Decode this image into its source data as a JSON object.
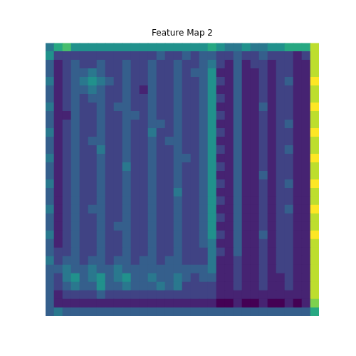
{
  "chart_data": {
    "type": "heatmap",
    "title": "Feature Map 2",
    "tick_labels": false,
    "zlim": [
      0,
      1
    ],
    "cells": [
      [
        0.4,
        0.6,
        0.7,
        0.5,
        0.5,
        0.5,
        0.5,
        0.5,
        0.5,
        0.5,
        0.5,
        0.5,
        0.5,
        0.5,
        0.5,
        0.5,
        0.5,
        0.5,
        0.5,
        0.6,
        0.5,
        0.4,
        0.4,
        0.5,
        0.4,
        0.4,
        0.5,
        0.5,
        0.6,
        0.6,
        0.6,
        0.9
      ],
      [
        0.5,
        0.2,
        0.2,
        0.2,
        0.2,
        0.2,
        0.2,
        0.2,
        0.2,
        0.2,
        0.2,
        0.2,
        0.2,
        0.3,
        0.2,
        0.2,
        0.3,
        0.2,
        0.3,
        0.3,
        0.2,
        0.2,
        0.3,
        0.2,
        0.2,
        0.3,
        0.2,
        0.2,
        0.2,
        0.1,
        0.2,
        0.9
      ],
      [
        0.3,
        0.1,
        0.2,
        0.3,
        0.2,
        0.2,
        0.3,
        0.2,
        0.2,
        0.3,
        0.2,
        0.2,
        0.3,
        0.2,
        0.2,
        0.3,
        0.2,
        0.2,
        0.3,
        0.4,
        0.2,
        0.1,
        0.3,
        0.1,
        0.2,
        0.2,
        0.1,
        0.2,
        0.2,
        0.1,
        0.1,
        0.9
      ],
      [
        0.3,
        0.1,
        0.2,
        0.3,
        0.3,
        0.4,
        0.3,
        0.2,
        0.2,
        0.3,
        0.2,
        0.2,
        0.3,
        0.2,
        0.2,
        0.3,
        0.2,
        0.3,
        0.3,
        0.5,
        0.1,
        0.1,
        0.3,
        0.1,
        0.1,
        0.2,
        0.1,
        0.2,
        0.2,
        0.1,
        0.1,
        0.9
      ],
      [
        0.4,
        0.1,
        0.2,
        0.3,
        0.4,
        0.5,
        0.4,
        0.3,
        0.2,
        0.3,
        0.2,
        0.2,
        0.3,
        0.2,
        0.2,
        0.3,
        0.2,
        0.2,
        0.3,
        0.5,
        0.2,
        0.1,
        0.3,
        0.1,
        0.1,
        0.2,
        0.1,
        0.2,
        0.3,
        0.1,
        0.1,
        1.0
      ],
      [
        0.3,
        0.1,
        0.2,
        0.3,
        0.3,
        0.4,
        0.3,
        0.2,
        0.2,
        0.3,
        0.2,
        0.1,
        0.3,
        0.2,
        0.2,
        0.3,
        0.2,
        0.2,
        0.3,
        0.5,
        0.1,
        0.1,
        0.3,
        0.1,
        0.1,
        0.2,
        0.1,
        0.2,
        0.2,
        0.1,
        0.1,
        0.9
      ],
      [
        0.3,
        0.1,
        0.2,
        0.3,
        0.2,
        0.3,
        0.3,
        0.2,
        0.2,
        0.3,
        0.2,
        0.2,
        0.3,
        0.2,
        0.2,
        0.3,
        0.2,
        0.2,
        0.3,
        0.5,
        0.2,
        0.1,
        0.3,
        0.1,
        0.1,
        0.2,
        0.1,
        0.2,
        0.2,
        0.1,
        0.1,
        0.9
      ],
      [
        0.4,
        0.1,
        0.2,
        0.3,
        0.2,
        0.2,
        0.3,
        0.2,
        0.3,
        0.3,
        0.2,
        0.2,
        0.3,
        0.2,
        0.2,
        0.3,
        0.2,
        0.2,
        0.3,
        0.5,
        0.1,
        0.1,
        0.3,
        0.1,
        0.1,
        0.3,
        0.1,
        0.2,
        0.2,
        0.1,
        0.1,
        1.0
      ],
      [
        0.3,
        0.1,
        0.1,
        0.3,
        0.2,
        0.2,
        0.3,
        0.2,
        0.2,
        0.3,
        0.3,
        0.2,
        0.3,
        0.2,
        0.2,
        0.3,
        0.2,
        0.2,
        0.3,
        0.5,
        0.2,
        0.1,
        0.3,
        0.1,
        0.1,
        0.2,
        0.1,
        0.2,
        0.2,
        0.1,
        0.1,
        0.9
      ],
      [
        0.3,
        0.1,
        0.2,
        0.3,
        0.2,
        0.2,
        0.3,
        0.2,
        0.2,
        0.3,
        0.2,
        0.2,
        0.3,
        0.3,
        0.2,
        0.3,
        0.2,
        0.2,
        0.3,
        0.5,
        0.1,
        0.1,
        0.3,
        0.1,
        0.1,
        0.2,
        0.1,
        0.2,
        0.3,
        0.1,
        0.1,
        0.9
      ],
      [
        0.4,
        0.1,
        0.2,
        0.3,
        0.2,
        0.2,
        0.3,
        0.2,
        0.2,
        0.3,
        0.2,
        0.2,
        0.4,
        0.2,
        0.2,
        0.3,
        0.2,
        0.2,
        0.3,
        0.5,
        0.2,
        0.1,
        0.3,
        0.1,
        0.1,
        0.2,
        0.1,
        0.2,
        0.2,
        0.1,
        0.1,
        1.0
      ],
      [
        0.3,
        0.1,
        0.2,
        0.3,
        0.2,
        0.3,
        0.3,
        0.2,
        0.2,
        0.3,
        0.2,
        0.2,
        0.3,
        0.2,
        0.3,
        0.3,
        0.2,
        0.2,
        0.3,
        0.5,
        0.1,
        0.1,
        0.3,
        0.1,
        0.1,
        0.2,
        0.1,
        0.2,
        0.2,
        0.1,
        0.1,
        0.9
      ],
      [
        0.3,
        0.1,
        0.2,
        0.3,
        0.2,
        0.2,
        0.4,
        0.2,
        0.2,
        0.3,
        0.2,
        0.2,
        0.3,
        0.2,
        0.2,
        0.3,
        0.2,
        0.2,
        0.3,
        0.5,
        0.2,
        0.1,
        0.3,
        0.1,
        0.1,
        0.2,
        0.1,
        0.2,
        0.3,
        0.1,
        0.1,
        0.9
      ],
      [
        0.4,
        0.1,
        0.2,
        0.3,
        0.2,
        0.2,
        0.3,
        0.2,
        0.2,
        0.3,
        0.2,
        0.2,
        0.3,
        0.2,
        0.2,
        0.3,
        0.3,
        0.2,
        0.3,
        0.5,
        0.1,
        0.1,
        0.3,
        0.1,
        0.1,
        0.2,
        0.1,
        0.2,
        0.2,
        0.1,
        0.1,
        1.0
      ],
      [
        0.3,
        0.1,
        0.2,
        0.3,
        0.2,
        0.2,
        0.3,
        0.2,
        0.2,
        0.4,
        0.2,
        0.2,
        0.3,
        0.2,
        0.2,
        0.3,
        0.2,
        0.2,
        0.3,
        0.5,
        0.2,
        0.1,
        0.3,
        0.1,
        0.1,
        0.2,
        0.1,
        0.2,
        0.2,
        0.1,
        0.1,
        0.9
      ],
      [
        0.3,
        0.1,
        0.2,
        0.3,
        0.2,
        0.2,
        0.3,
        0.2,
        0.2,
        0.3,
        0.2,
        0.2,
        0.3,
        0.2,
        0.2,
        0.3,
        0.2,
        0.2,
        0.3,
        0.5,
        0.1,
        0.1,
        0.3,
        0.1,
        0.1,
        0.3,
        0.1,
        0.2,
        0.2,
        0.1,
        0.1,
        0.9
      ],
      [
        0.4,
        0.1,
        0.2,
        0.3,
        0.2,
        0.2,
        0.3,
        0.2,
        0.2,
        0.3,
        0.2,
        0.2,
        0.3,
        0.2,
        0.2,
        0.3,
        0.2,
        0.2,
        0.3,
        0.5,
        0.2,
        0.1,
        0.3,
        0.1,
        0.1,
        0.2,
        0.1,
        0.2,
        0.3,
        0.1,
        0.1,
        1.0
      ],
      [
        0.3,
        0.1,
        0.2,
        0.3,
        0.2,
        0.2,
        0.3,
        0.2,
        0.2,
        0.3,
        0.2,
        0.2,
        0.3,
        0.2,
        0.2,
        0.4,
        0.2,
        0.2,
        0.3,
        0.5,
        0.1,
        0.1,
        0.3,
        0.1,
        0.1,
        0.2,
        0.1,
        0.2,
        0.2,
        0.1,
        0.1,
        0.9
      ],
      [
        0.3,
        0.1,
        0.2,
        0.3,
        0.2,
        0.2,
        0.3,
        0.2,
        0.2,
        0.3,
        0.2,
        0.2,
        0.3,
        0.2,
        0.2,
        0.3,
        0.2,
        0.2,
        0.3,
        0.5,
        0.2,
        0.1,
        0.3,
        0.1,
        0.1,
        0.2,
        0.1,
        0.2,
        0.2,
        0.1,
        0.1,
        0.9
      ],
      [
        0.4,
        0.1,
        0.2,
        0.3,
        0.2,
        0.3,
        0.3,
        0.2,
        0.2,
        0.3,
        0.2,
        0.2,
        0.3,
        0.2,
        0.2,
        0.3,
        0.2,
        0.2,
        0.3,
        0.5,
        0.1,
        0.1,
        0.3,
        0.1,
        0.1,
        0.2,
        0.1,
        0.2,
        0.3,
        0.1,
        0.1,
        1.0
      ],
      [
        0.3,
        0.1,
        0.2,
        0.3,
        0.2,
        0.2,
        0.3,
        0.2,
        0.2,
        0.3,
        0.2,
        0.2,
        0.3,
        0.2,
        0.2,
        0.3,
        0.2,
        0.2,
        0.3,
        0.5,
        0.2,
        0.1,
        0.3,
        0.1,
        0.1,
        0.2,
        0.1,
        0.2,
        0.2,
        0.1,
        0.1,
        0.9
      ],
      [
        0.3,
        0.1,
        0.2,
        0.3,
        0.2,
        0.2,
        0.3,
        0.2,
        0.3,
        0.3,
        0.2,
        0.2,
        0.3,
        0.2,
        0.2,
        0.3,
        0.2,
        0.2,
        0.3,
        0.5,
        0.1,
        0.1,
        0.3,
        0.1,
        0.1,
        0.2,
        0.1,
        0.2,
        0.2,
        0.1,
        0.1,
        0.9
      ],
      [
        0.4,
        0.1,
        0.2,
        0.3,
        0.2,
        0.2,
        0.3,
        0.2,
        0.2,
        0.3,
        0.2,
        0.2,
        0.3,
        0.2,
        0.2,
        0.3,
        0.2,
        0.2,
        0.3,
        0.5,
        0.2,
        0.1,
        0.3,
        0.1,
        0.1,
        0.3,
        0.1,
        0.2,
        0.2,
        0.1,
        0.1,
        1.0
      ],
      [
        0.3,
        0.1,
        0.2,
        0.3,
        0.2,
        0.2,
        0.3,
        0.2,
        0.2,
        0.3,
        0.2,
        0.2,
        0.3,
        0.2,
        0.2,
        0.3,
        0.2,
        0.2,
        0.3,
        0.4,
        0.1,
        0.1,
        0.3,
        0.1,
        0.1,
        0.2,
        0.1,
        0.2,
        0.2,
        0.1,
        0.1,
        0.9
      ],
      [
        0.3,
        0.2,
        0.2,
        0.3,
        0.2,
        0.2,
        0.3,
        0.2,
        0.2,
        0.3,
        0.2,
        0.2,
        0.3,
        0.2,
        0.2,
        0.3,
        0.2,
        0.2,
        0.2,
        0.4,
        0.2,
        0.1,
        0.3,
        0.1,
        0.1,
        0.2,
        0.1,
        0.2,
        0.2,
        0.1,
        0.1,
        0.9
      ],
      [
        0.4,
        0.2,
        0.3,
        0.3,
        0.2,
        0.3,
        0.3,
        0.2,
        0.3,
        0.3,
        0.2,
        0.3,
        0.3,
        0.2,
        0.3,
        0.3,
        0.2,
        0.2,
        0.2,
        0.4,
        0.1,
        0.1,
        0.2,
        0.1,
        0.1,
        0.2,
        0.1,
        0.2,
        0.2,
        0.1,
        0.1,
        0.9
      ],
      [
        0.3,
        0.3,
        0.4,
        0.3,
        0.3,
        0.4,
        0.3,
        0.3,
        0.4,
        0.3,
        0.3,
        0.3,
        0.3,
        0.3,
        0.3,
        0.3,
        0.3,
        0.3,
        0.3,
        0.4,
        0.1,
        0.1,
        0.2,
        0.1,
        0.1,
        0.2,
        0.1,
        0.2,
        0.2,
        0.1,
        0.1,
        0.9
      ],
      [
        0.3,
        0.2,
        0.4,
        0.5,
        0.3,
        0.4,
        0.5,
        0.3,
        0.4,
        0.5,
        0.3,
        0.3,
        0.4,
        0.3,
        0.3,
        0.4,
        0.3,
        0.2,
        0.3,
        0.3,
        0.1,
        0.1,
        0.2,
        0.1,
        0.1,
        0.2,
        0.1,
        0.1,
        0.2,
        0.1,
        0.1,
        0.9
      ],
      [
        0.3,
        0.2,
        0.3,
        0.4,
        0.3,
        0.3,
        0.5,
        0.3,
        0.3,
        0.4,
        0.3,
        0.3,
        0.3,
        0.4,
        0.3,
        0.4,
        0.2,
        0.2,
        0.2,
        0.2,
        0.1,
        0.1,
        0.2,
        0.1,
        0.1,
        0.2,
        0.1,
        0.1,
        0.2,
        0.1,
        0.1,
        0.9
      ],
      [
        0.3,
        0.1,
        0.2,
        0.2,
        0.2,
        0.2,
        0.3,
        0.2,
        0.2,
        0.2,
        0.2,
        0.2,
        0.2,
        0.2,
        0.2,
        0.2,
        0.2,
        0.2,
        0.2,
        0.2,
        0.1,
        0.1,
        0.1,
        0.1,
        0.1,
        0.1,
        0.1,
        0.1,
        0.1,
        0.1,
        0.1,
        0.9
      ],
      [
        0.3,
        0.1,
        0.1,
        0.1,
        0.1,
        0.1,
        0.1,
        0.1,
        0.1,
        0.1,
        0.1,
        0.1,
        0.1,
        0.1,
        0.1,
        0.1,
        0.1,
        0.1,
        0.1,
        0.1,
        0.0,
        0.0,
        0.1,
        0.0,
        0.0,
        0.1,
        0.0,
        0.0,
        0.1,
        0.0,
        0.1,
        0.8
      ],
      [
        0.3,
        0.4,
        0.3,
        0.3,
        0.3,
        0.3,
        0.3,
        0.3,
        0.3,
        0.3,
        0.3,
        0.3,
        0.3,
        0.3,
        0.3,
        0.3,
        0.3,
        0.3,
        0.3,
        0.3,
        0.3,
        0.3,
        0.3,
        0.3,
        0.3,
        0.3,
        0.3,
        0.3,
        0.3,
        0.3,
        0.3,
        0.6
      ]
    ]
  }
}
